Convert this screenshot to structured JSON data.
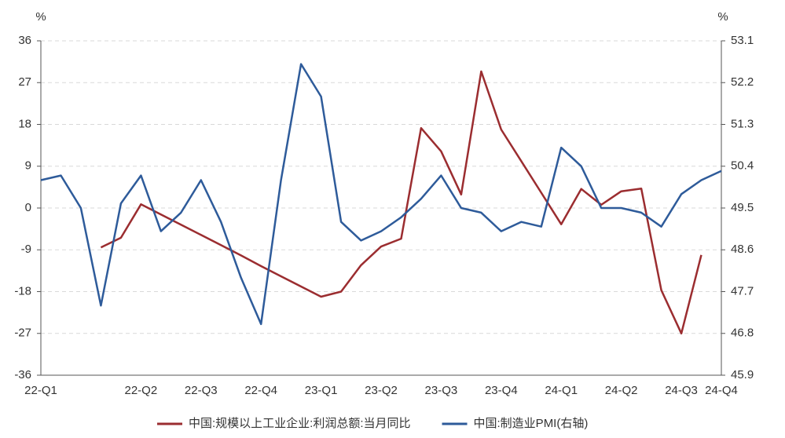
{
  "chart_data": {
    "type": "line",
    "y_unit": "%",
    "y2_unit": "%",
    "categories": [
      "22-Q1",
      null,
      null,
      null,
      null,
      "22-Q2",
      null,
      null,
      "22-Q3",
      null,
      null,
      "22-Q4",
      null,
      null,
      "23-Q1",
      null,
      null,
      "23-Q2",
      null,
      null,
      "23-Q3",
      null,
      null,
      "23-Q4",
      null,
      null,
      "24-Q1",
      null,
      null,
      "24-Q2",
      null,
      null,
      "24-Q3",
      null,
      "24-Q4"
    ],
    "series": [
      {
        "name": "中国:规模以上工业企业:利润总额:当月同比",
        "color": "#9b2d30",
        "axis": "y",
        "values": [
          null,
          null,
          null,
          -8.5,
          -6.4,
          0.8,
          -1.4,
          -3.6,
          -5.8,
          -8.0,
          -10.2,
          -12.5,
          -14.7,
          -16.9,
          -19.1,
          -18.0,
          -12.3,
          -8.3,
          -6.6,
          17.2,
          12.2,
          2.9,
          29.4,
          16.9,
          10.1,
          3.3,
          -3.5,
          4.1,
          0.7,
          3.6,
          4.2,
          -17.7,
          -27.0,
          -10.1,
          null
        ]
      },
      {
        "name": "中国:制造业PMI(右轴)",
        "color": "#2e5b9a",
        "axis": "y2",
        "values": [
          50.1,
          50.2,
          49.5,
          47.4,
          49.6,
          50.2,
          49.0,
          49.4,
          50.1,
          49.2,
          48.0,
          47.0,
          50.1,
          52.6,
          51.9,
          49.2,
          48.8,
          49.0,
          49.3,
          49.7,
          50.2,
          49.5,
          49.4,
          49.0,
          49.2,
          49.1,
          50.8,
          50.4,
          49.5,
          49.5,
          49.4,
          49.1,
          49.8,
          50.1,
          50.3
        ]
      }
    ],
    "ylim": [
      -36,
      36
    ],
    "yticks": [
      -36,
      -27,
      -18,
      -9,
      0,
      9,
      18,
      27,
      36
    ],
    "y2lim": [
      45.9,
      53.1
    ],
    "y2ticks": [
      45.9,
      46.8,
      47.7,
      48.6,
      49.5,
      50.4,
      51.3,
      52.2,
      53.1
    ],
    "grid": true,
    "legend": "bottom"
  }
}
